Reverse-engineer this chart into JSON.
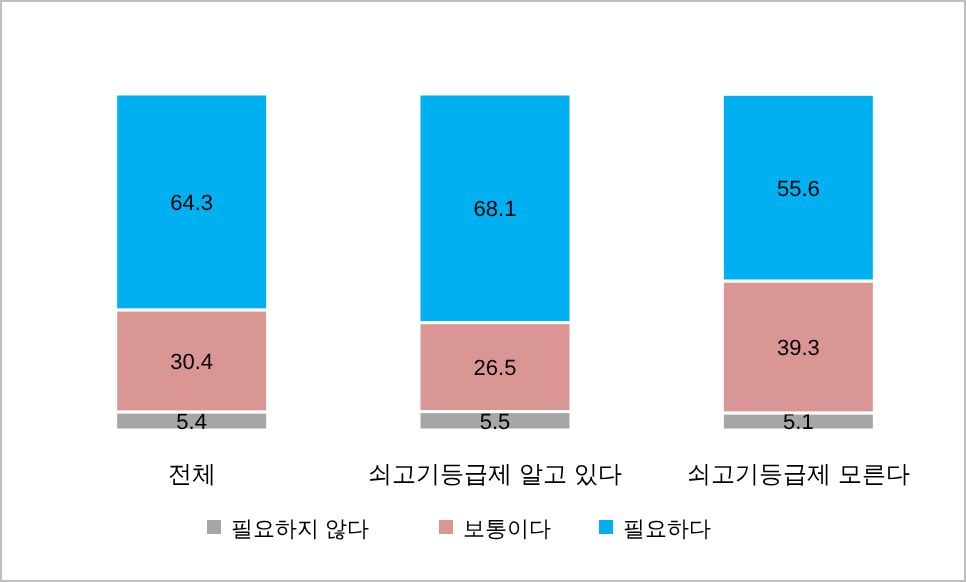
{
  "chart_data": {
    "type": "bar",
    "stacked": true,
    "data_labels": true,
    "legend": "bottom",
    "categories": [
      "전체",
      "쇠고기등급제 알고 있다",
      "쇠고기등급제 모른다"
    ],
    "series": [
      {
        "name": "필요하지 않다",
        "color": "#a6a6a6",
        "values": [
          5.4,
          5.5,
          5.1
        ]
      },
      {
        "name": "보통이다",
        "color": "#d99694",
        "values": [
          30.4,
          26.5,
          39.3
        ]
      },
      {
        "name": "필요하다",
        "color": "#00b0f0",
        "values": [
          64.3,
          68.1,
          55.6
        ]
      }
    ]
  }
}
